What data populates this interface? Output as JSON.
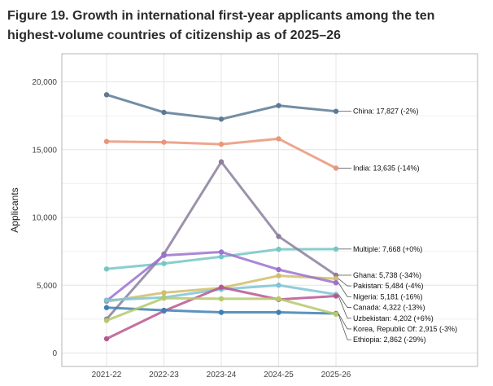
{
  "figure": {
    "title": "Figure 19. Growth in international first-year applicants among the ten highest-volume countries of citizenship as of 2025–26"
  },
  "chart_data": {
    "type": "line",
    "title": "Figure 19. Growth in international first-year applicants among the ten highest-volume countries of citizenship as of 2025–26",
    "xlabel": "",
    "ylabel": "Applicants",
    "categories": [
      "2021-22",
      "2022-23",
      "2023-24",
      "2024-25",
      "2025-26"
    ],
    "ylim": [
      -500,
      21000
    ],
    "yticks": [
      0,
      5000,
      10000,
      15000,
      20000
    ],
    "ytick_labels": [
      "0",
      "5,000",
      "10,000",
      "15,000",
      "20,000"
    ],
    "grid": true,
    "series": [
      {
        "name": "China",
        "color": "#5b7a95",
        "values": [
          19050,
          17750,
          17250,
          18250,
          17827
        ],
        "label": "China: 17,827 (-2%)"
      },
      {
        "name": "India",
        "color": "#e9967a",
        "values": [
          15600,
          15550,
          15400,
          15800,
          13635
        ],
        "label": "India: 13,635 (-14%)"
      },
      {
        "name": "Multiple",
        "color": "#76c6c6",
        "values": [
          6200,
          6600,
          7100,
          7650,
          7668
        ],
        "label": "Multiple: 7,668 (+0%)"
      },
      {
        "name": "Ghana",
        "color": "#8b7f9c",
        "values": [
          2500,
          7300,
          14100,
          8600,
          5738
        ],
        "label": "Ghana: 5,738 (-34%)"
      },
      {
        "name": "Pakistan",
        "color": "#d1bd6b",
        "values": [
          3800,
          4450,
          4800,
          5700,
          5484
        ],
        "label": "Pakistan: 5,484 (-4%)"
      },
      {
        "name": "Nigeria",
        "color": "#9b72cf",
        "values": [
          3850,
          7200,
          7450,
          6150,
          5181
        ],
        "label": "Nigeria: 5,181 (-16%)"
      },
      {
        "name": "Canada",
        "color": "#7cc4d6",
        "values": [
          3900,
          4100,
          4700,
          5000,
          4322
        ],
        "label": "Canada: 4,322 (-13%)"
      },
      {
        "name": "Uzbekistan",
        "color": "#b8578f",
        "values": [
          1050,
          3100,
          4850,
          3950,
          4202
        ],
        "label": "Uzbekistan: 4,202 (+6%)"
      },
      {
        "name": "Korea, Republic Of",
        "color": "#3f7fb3",
        "values": [
          3350,
          3150,
          3000,
          3000,
          2915
        ],
        "label": "Korea, Republic Of: 2,915 (-3%)"
      },
      {
        "name": "Ethiopia",
        "color": "#b5c96a",
        "values": [
          2400,
          4050,
          4000,
          4000,
          2862
        ],
        "label": "Ethiopia: 2,862 (-29%)"
      }
    ]
  }
}
